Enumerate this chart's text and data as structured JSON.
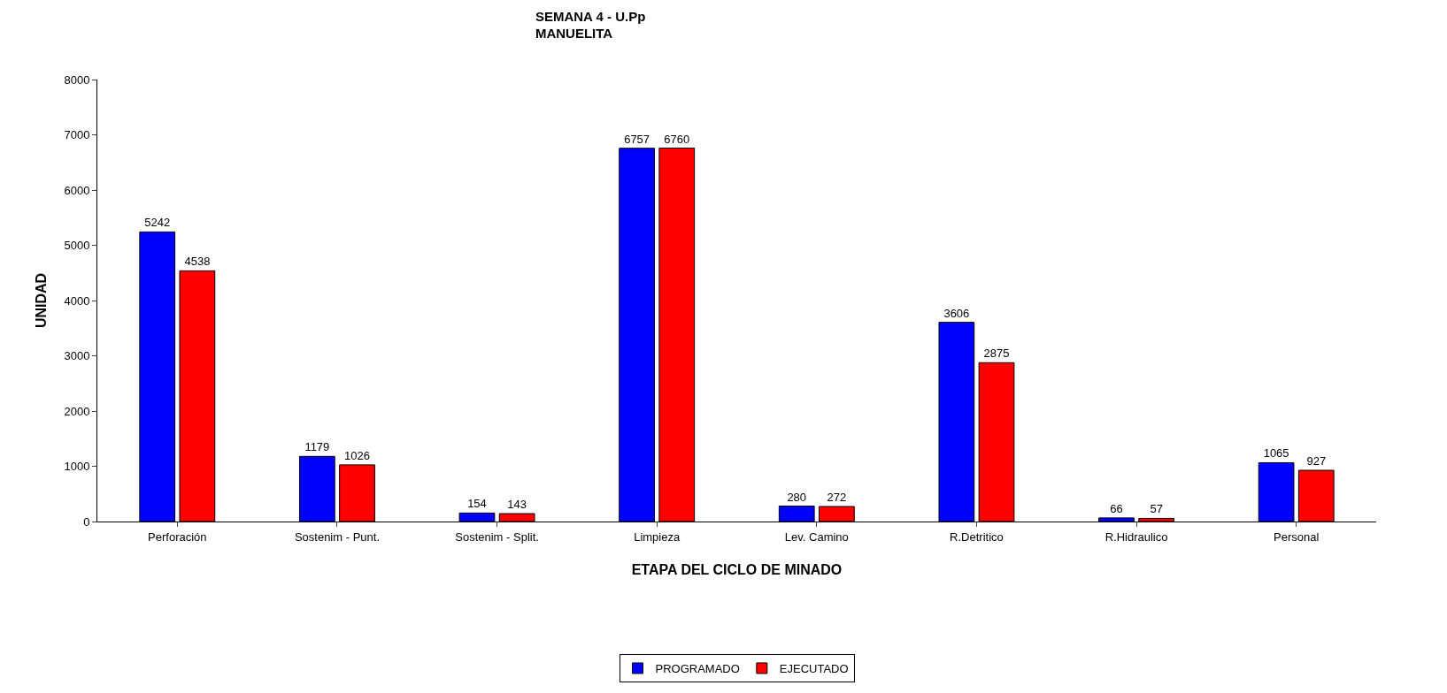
{
  "chart_data": {
    "type": "bar",
    "title": "SEMANA 4 - U.Pp\nMANUELITA",
    "xlabel": "ETAPA DEL CICLO DE MINADO",
    "ylabel": "UNIDAD",
    "categories": [
      "Perforación",
      "Sostenim - Punt.",
      "Sostenim - Split.",
      "Limpieza",
      "Lev. Camino",
      "R.Detritico",
      "R.Hidraulico",
      "Personal"
    ],
    "series": [
      {
        "name": "PROGRAMADO",
        "color": "#0000ff",
        "values": [
          5242,
          1179,
          154,
          6757,
          280,
          3606,
          66,
          1065
        ]
      },
      {
        "name": "EJECUTADO",
        "color": "#ff0000",
        "values": [
          4538,
          1026,
          143,
          6760,
          272,
          2875,
          57,
          927
        ]
      }
    ],
    "ylim": [
      0,
      8000
    ],
    "yticks": [
      0,
      1000,
      2000,
      3000,
      4000,
      5000,
      6000,
      7000,
      8000
    ],
    "data_labels": true,
    "legend": "bottom"
  }
}
